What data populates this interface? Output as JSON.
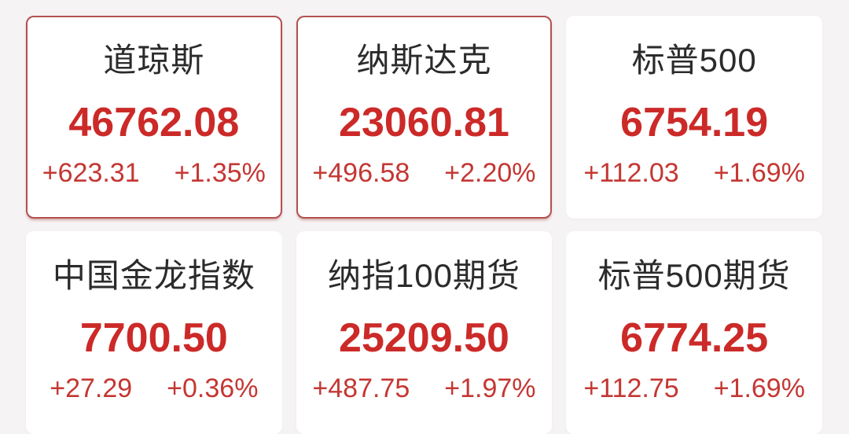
{
  "board": {
    "description": "Stock index quotes grid",
    "colors": {
      "page_bg": "#f5f3f4",
      "card_bg": "#ffffff",
      "highlight_border_red": "#b25150",
      "title_text": "#2b2b2b",
      "value_red": "#cb2a28",
      "change_red": "#c43733"
    }
  },
  "cards": [
    {
      "name": "道琼斯",
      "value": "46762.08",
      "change": "+623.31",
      "change_percent": "+1.35%",
      "highlighted": true
    },
    {
      "name": "纳斯达克",
      "value": "23060.81",
      "change": "+496.58",
      "change_percent": "+2.20%",
      "highlighted": true
    },
    {
      "name": "标普500",
      "value": "6754.19",
      "change": "+112.03",
      "change_percent": "+1.69%",
      "highlighted": false
    },
    {
      "name": "中国金龙指数",
      "value": "7700.50",
      "change": "+27.29",
      "change_percent": "+0.36%",
      "highlighted": false
    },
    {
      "name": "纳指100期货",
      "value": "25209.50",
      "change": "+487.75",
      "change_percent": "+1.97%",
      "highlighted": false
    },
    {
      "name": "标普500期货",
      "value": "6774.25",
      "change": "+112.75",
      "change_percent": "+1.69%",
      "highlighted": false
    }
  ]
}
